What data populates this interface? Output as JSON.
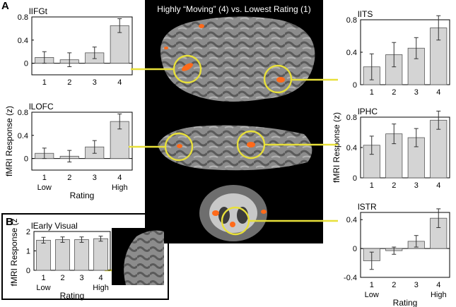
{
  "figure": {
    "panel_a": "A",
    "panel_b": "B",
    "brain_title": "Highly “Moving” (4) vs. Lowest Rating (1)",
    "colors": {
      "bar": "#d4d4d4",
      "activation": "#ff6a1a",
      "connector": "#e8e03a"
    }
  },
  "chart_data": [
    {
      "type": "bar",
      "title": "lIFGt",
      "ylabel": "",
      "xlabel": "",
      "categories": [
        "1",
        "2",
        "3",
        "4"
      ],
      "extra_xlabels": [],
      "values": [
        0.1,
        0.06,
        0.18,
        0.65
      ],
      "errors": [
        0.1,
        0.12,
        0.1,
        0.12
      ],
      "ylim": [
        -0.2,
        0.8
      ],
      "yticks": [
        0,
        0.4,
        0.8
      ],
      "ytick_labels": [
        "0",
        "0.4",
        "0.8"
      ]
    },
    {
      "type": "bar",
      "title": "lLOFC",
      "ylabel": "fMRI Response (z)",
      "xlabel": "Rating",
      "categories": [
        "1",
        "2",
        "3",
        "4"
      ],
      "extra_xlabels": [
        "Low",
        "High"
      ],
      "values": [
        0.09,
        0.04,
        0.2,
        0.64
      ],
      "errors": [
        0.09,
        0.1,
        0.11,
        0.13
      ],
      "ylim": [
        -0.2,
        0.8
      ],
      "yticks": [
        0,
        0.4,
        0.8
      ],
      "ytick_labels": [
        "0",
        "0.4",
        "0.8"
      ]
    },
    {
      "type": "bar",
      "title": "lITS",
      "ylabel": "",
      "xlabel": "",
      "categories": [
        "1",
        "2",
        "3",
        "4"
      ],
      "extra_xlabels": [],
      "values": [
        0.22,
        0.37,
        0.45,
        0.7
      ],
      "errors": [
        0.16,
        0.15,
        0.13,
        0.15
      ],
      "ylim": [
        0,
        0.8
      ],
      "yticks": [
        0,
        0.4,
        0.8
      ],
      "ytick_labels": [
        "0",
        "0.4",
        "0.8"
      ]
    },
    {
      "type": "bar",
      "title": "lPHC",
      "ylabel": "fMRI Response (z)",
      "xlabel": "",
      "categories": [
        "1",
        "2",
        "3",
        "4"
      ],
      "extra_xlabels": [],
      "values": [
        0.43,
        0.58,
        0.53,
        0.76
      ],
      "errors": [
        0.12,
        0.13,
        0.12,
        0.12
      ],
      "ylim": [
        0,
        0.8
      ],
      "yticks": [
        0,
        0.4,
        0.8
      ],
      "ytick_labels": [
        "0",
        "0.4",
        "0.8"
      ]
    },
    {
      "type": "bar",
      "title": "lSTR",
      "ylabel": "",
      "xlabel": "Rating",
      "categories": [
        "1",
        "2",
        "3",
        "4"
      ],
      "extra_xlabels": [
        "Low",
        "High"
      ],
      "values": [
        -0.17,
        -0.03,
        0.1,
        0.42
      ],
      "errors": [
        0.12,
        0.05,
        0.08,
        0.13
      ],
      "ylim": [
        -0.4,
        0.5
      ],
      "yticks": [
        -0.4,
        0,
        0.4
      ],
      "ytick_labels": [
        "-0.4",
        "0",
        "0.4"
      ]
    },
    {
      "type": "bar",
      "title": "lEarly Visual",
      "ylabel": "fMRI Response (z)",
      "xlabel": "Rating",
      "categories": [
        "1",
        "2",
        "3",
        "4"
      ],
      "extra_xlabels": [
        "Low",
        "High"
      ],
      "values": [
        1.55,
        1.58,
        1.58,
        1.63
      ],
      "errors": [
        0.15,
        0.14,
        0.14,
        0.13
      ],
      "ylim": [
        0,
        2
      ],
      "yticks": [
        0,
        1,
        2
      ],
      "ytick_labels": [
        "0",
        "1",
        "2"
      ]
    }
  ]
}
